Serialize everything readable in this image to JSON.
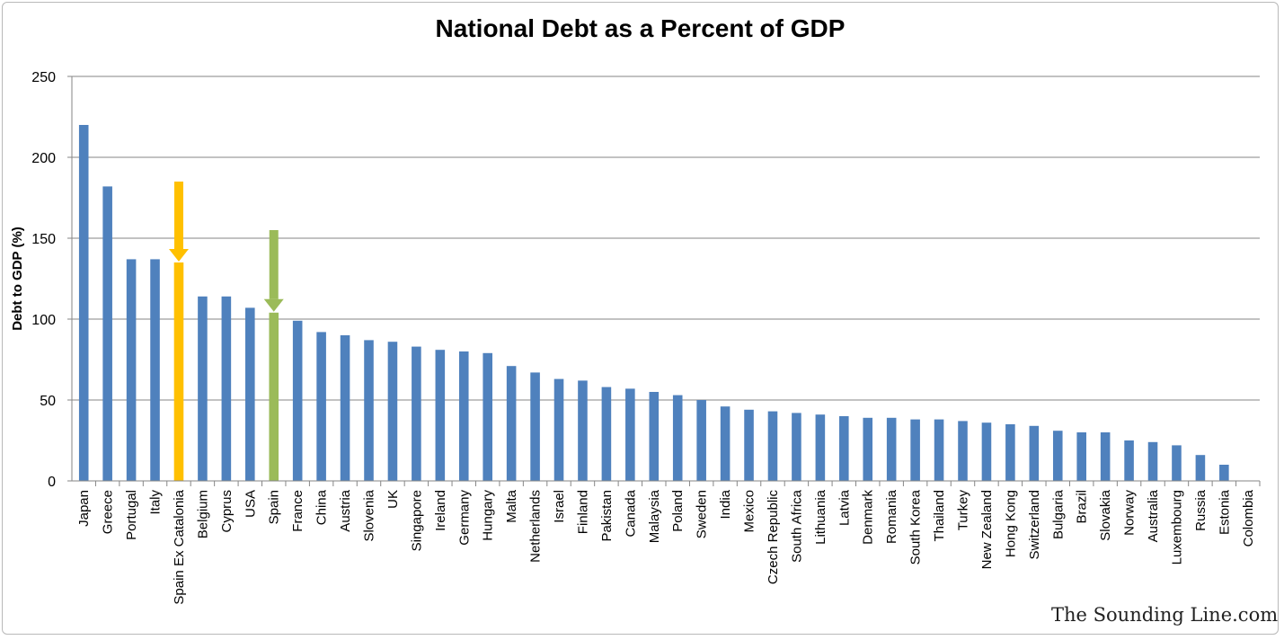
{
  "chart_data": {
    "type": "bar",
    "title": "National Debt as a Percent of GDP",
    "xlabel": "",
    "ylabel": "Debt to GDP (%)",
    "ylim": [
      0,
      250
    ],
    "yticks": [
      0,
      50,
      100,
      150,
      200,
      250
    ],
    "grid": true,
    "legend": "none",
    "bar_color": "#4f81bd",
    "categories": [
      "Japan",
      "Greece",
      "Portugal",
      "Italy",
      "Spain Ex Catalonia",
      "Belgium",
      "Cyprus",
      "USA",
      "Spain",
      "France",
      "China",
      "Austria",
      "Slovenia",
      "UK",
      "Singapore",
      "Ireland",
      "Germany",
      "Hungary",
      "Malta",
      "Netherlands",
      "Israel",
      "Finland",
      "Pakistan",
      "Canada",
      "Malaysia",
      "Poland",
      "Sweden",
      "India",
      "Mexico",
      "Czech Republic",
      "South Africa",
      "Lithuania",
      "Latvia",
      "Denmark",
      "Romania",
      "South Korea",
      "Thailand",
      "Turkey",
      "New Zealand",
      "Hong Kong",
      "Switzerland",
      "Bulgaria",
      "Brazil",
      "Slovakia",
      "Norway",
      "Australia",
      "Luxembourg",
      "Russia",
      "Estonia",
      "Colombia"
    ],
    "values": [
      220,
      182,
      137,
      137,
      135,
      114,
      114,
      107,
      104,
      99,
      92,
      90,
      87,
      86,
      83,
      81,
      80,
      79,
      71,
      67,
      63,
      62,
      58,
      57,
      55,
      53,
      50,
      46,
      44,
      43,
      42,
      41,
      40,
      39,
      39,
      38,
      38,
      37,
      36,
      35,
      34,
      31,
      30,
      30,
      25,
      24,
      22,
      16,
      10,
      0
    ],
    "highlights": [
      {
        "category": "Spain Ex Catalonia",
        "color": "#ffc000",
        "arrow_color": "#ffc000",
        "arrow_from": 185
      },
      {
        "category": "Spain",
        "color": "#9bbb59",
        "arrow_color": "#9bbb59",
        "arrow_from": 155
      }
    ]
  },
  "watermark": "The Sounding Line.com"
}
